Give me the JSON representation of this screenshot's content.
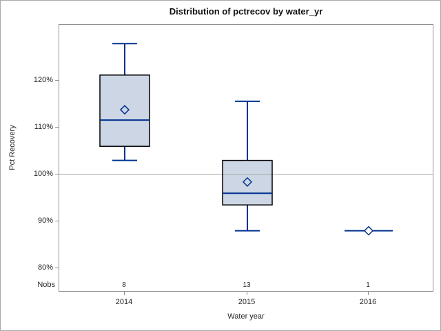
{
  "chart_data": {
    "type": "boxplot",
    "title": "Distribution of pctrecov by water_yr",
    "xlabel": "Water year",
    "ylabel": "Pct Recovery",
    "categories": [
      "2014",
      "2015",
      "2016"
    ],
    "nobs_label": "Nobs",
    "nobs": [
      "8",
      "13",
      "1"
    ],
    "y_ticks": [
      {
        "label": "120%",
        "value": 120
      },
      {
        "label": "110%",
        "value": 110
      },
      {
        "label": "100%",
        "value": 100
      },
      {
        "label": "90%",
        "value": 90
      },
      {
        "label": "80%",
        "value": 80
      }
    ],
    "y_axis_range": [
      75,
      132
    ],
    "reference_line_value": 100,
    "grid": false,
    "legend": "none",
    "series": [
      {
        "category": "2014",
        "n": 8,
        "whisker_low": 103,
        "q1": 106,
        "median": 111.6,
        "q3": 121.2,
        "whisker_high": 127.9,
        "mean": 113.8
      },
      {
        "category": "2015",
        "n": 13,
        "whisker_low": 88,
        "q1": 93.5,
        "median": 96,
        "q3": 103,
        "whisker_high": 115.6,
        "mean": 98.4
      },
      {
        "category": "2016",
        "n": 1,
        "whisker_low": 88,
        "q1": 88,
        "median": 88,
        "q3": 88,
        "whisker_high": 88,
        "mean": 88
      }
    ],
    "colors": {
      "box_fill": "#ccd6e5",
      "box_border": "#000000",
      "whisker": "#00318f",
      "median": "#00318f",
      "mean_marker": "#00318f",
      "reference_line": "#a6a6a6",
      "axis_frame": "#8f8f8f",
      "text": "#262626"
    }
  }
}
